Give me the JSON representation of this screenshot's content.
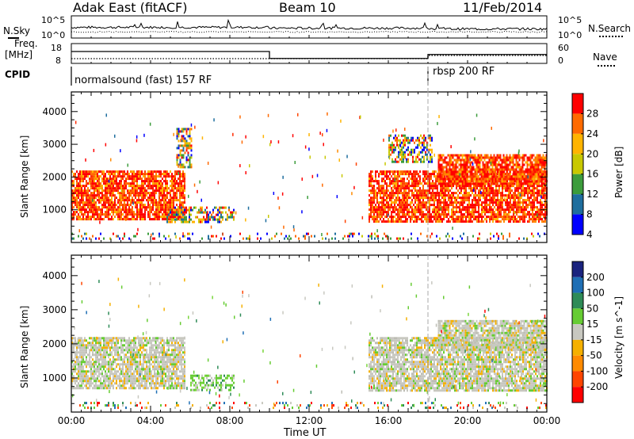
{
  "header": {
    "radar": "Adak East (fitACF)",
    "beam": "Beam 10",
    "date": "11/Feb/2014"
  },
  "top_panels": {
    "nsky_label": "N.Sky",
    "nsky_ticks": [
      "10^5",
      "10^0"
    ],
    "nsearch_label": "N.Search",
    "nsearch_ticks": [
      "10^5",
      "10^0"
    ],
    "freq_label_1": "Freq.",
    "freq_label_2": "[MHz]",
    "freq_ticks": [
      "18",
      "8"
    ],
    "nave_label": "Nave",
    "nave_ticks": [
      "60",
      "0"
    ],
    "cpid_label": "CPID",
    "cpid_segments": [
      {
        "label": "normalsound (fast) 157 RF",
        "start_hour": 0
      },
      {
        "label": "rbsp 200 RF",
        "start_hour": 18
      }
    ],
    "freq_steps": [
      {
        "from_hour": 0,
        "to_hour": 10,
        "mhz": 14
      },
      {
        "from_hour": 10,
        "to_hour": 18,
        "mhz": 10.5
      },
      {
        "from_hour": 18,
        "to_hour": 24,
        "mhz": 12.5
      }
    ]
  },
  "chart_data": [
    {
      "type": "heatmap",
      "name": "power",
      "ylabel": "Slant Range [km]",
      "yticks": [
        1000,
        2000,
        3000,
        4000
      ],
      "ylim": [
        0,
        4600
      ],
      "xlim": [
        0,
        24
      ],
      "colorbar_label": "Power [dB]",
      "colorbar_ticks": [
        "28",
        "24",
        "20",
        "16",
        "12",
        "8",
        "4"
      ],
      "colorbar_colors": [
        "#ff0000",
        "#ff6a00",
        "#ffb400",
        "#c8c800",
        "#3c9c3c",
        "#1e6e9e",
        "#0000ff"
      ],
      "scatter_regions": [
        {
          "x": [
            0,
            5.7
          ],
          "y": [
            700,
            2200
          ],
          "level": "high"
        },
        {
          "x": [
            4.8,
            8.2
          ],
          "y": [
            650,
            1100
          ],
          "level": "mid"
        },
        {
          "x": [
            5.3,
            6.1
          ],
          "y": [
            2300,
            3500
          ],
          "level": "mid"
        },
        {
          "x": [
            15.0,
            24
          ],
          "y": [
            650,
            2200
          ],
          "level": "high"
        },
        {
          "x": [
            16.0,
            18.2
          ],
          "y": [
            2500,
            3300
          ],
          "level": "mid"
        },
        {
          "x": [
            18.5,
            24
          ],
          "y": [
            1800,
            2700
          ],
          "level": "high"
        },
        {
          "x": [
            0,
            24
          ],
          "y": [
            100,
            300
          ],
          "level": "low"
        }
      ]
    },
    {
      "type": "heatmap",
      "name": "velocity",
      "ylabel": "Slant Range [km]",
      "yticks": [
        1000,
        2000,
        3000,
        4000
      ],
      "ylim": [
        0,
        4600
      ],
      "xlim": [
        0,
        24
      ],
      "colorbar_label": "Velocity [m s^-1]",
      "colorbar_ticks": [
        "200",
        "100",
        "50",
        "15",
        "-15",
        "-50",
        "-100",
        "-200"
      ],
      "colorbar_colors": [
        "#1a237e",
        "#1f6fb5",
        "#2e8b57",
        "#66cc33",
        "#c8c8c0",
        "#f5b000",
        "#ff8a00",
        "#ff4500",
        "#ff0000"
      ],
      "scatter_regions": [
        {
          "x": [
            0,
            5.7
          ],
          "y": [
            700,
            2200
          ],
          "level": "gray"
        },
        {
          "x": [
            6.0,
            8.2
          ],
          "y": [
            650,
            1100
          ],
          "level": "green"
        },
        {
          "x": [
            15.0,
            24
          ],
          "y": [
            650,
            2200
          ],
          "level": "gray"
        },
        {
          "x": [
            18.5,
            24
          ],
          "y": [
            1800,
            2700
          ],
          "level": "gray"
        },
        {
          "x": [
            0,
            24
          ],
          "y": [
            100,
            300
          ],
          "level": "mixed"
        }
      ]
    }
  ],
  "x_axis": {
    "tick_labels": [
      "00:00",
      "04:00",
      "08:00",
      "12:00",
      "16:00",
      "20:00",
      "00:00"
    ],
    "label": "Time UT"
  }
}
